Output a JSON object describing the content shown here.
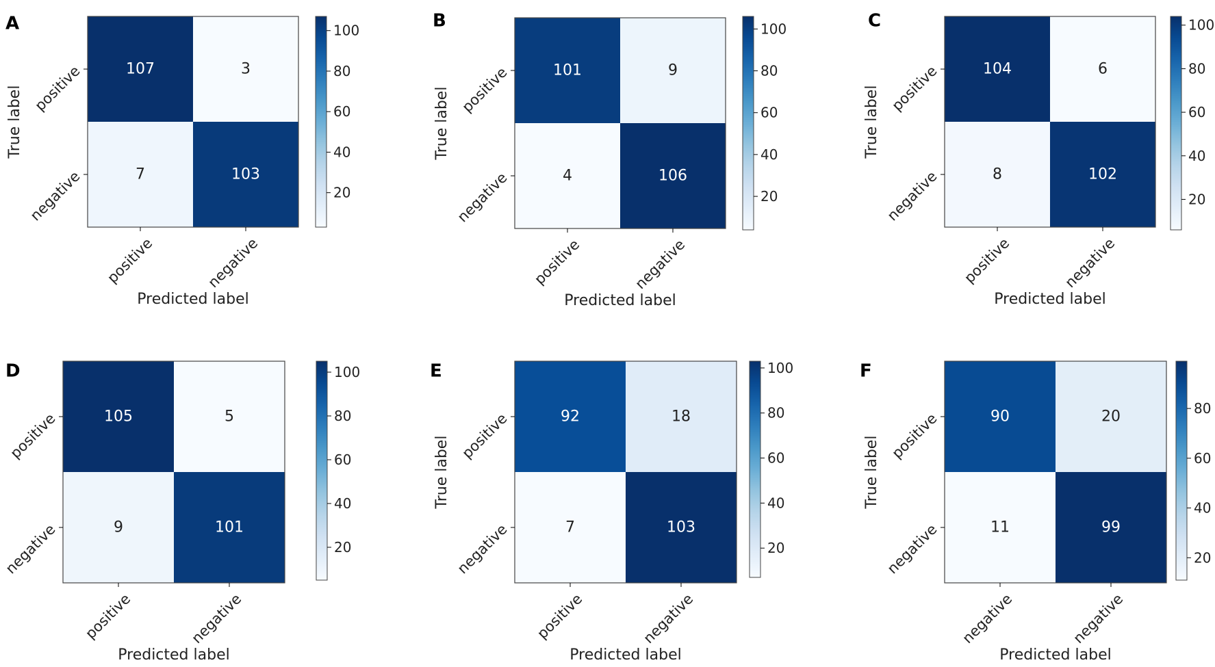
{
  "chart_data": [
    {
      "panel": "A",
      "type": "heatmap",
      "xlabel": "Predicted label",
      "ylabel": "True label",
      "x_categories": [
        "positive",
        "negative"
      ],
      "y_categories": [
        "positive",
        "negative"
      ],
      "matrix": [
        [
          107,
          3
        ],
        [
          7,
          103
        ]
      ],
      "colormap": "Blues",
      "vmin": 3,
      "vmax": 107,
      "colorbar_ticks": [
        20,
        40,
        60,
        80,
        100
      ]
    },
    {
      "panel": "B",
      "type": "heatmap",
      "xlabel": "Predicted label",
      "ylabel": "True label",
      "x_categories": [
        "positive",
        "negative"
      ],
      "y_categories": [
        "positive",
        "negative"
      ],
      "matrix": [
        [
          101,
          9
        ],
        [
          4,
          106
        ]
      ],
      "colormap": "Blues",
      "vmin": 4,
      "vmax": 106,
      "colorbar_ticks": [
        20,
        40,
        60,
        80,
        100
      ]
    },
    {
      "panel": "C",
      "type": "heatmap",
      "xlabel": "Predicted label",
      "ylabel": "True label",
      "x_categories": [
        "positive",
        "negative"
      ],
      "y_categories": [
        "positive",
        "negative"
      ],
      "matrix": [
        [
          104,
          6
        ],
        [
          8,
          102
        ]
      ],
      "colormap": "Blues",
      "vmin": 6,
      "vmax": 104,
      "colorbar_ticks": [
        20,
        40,
        60,
        80,
        100
      ]
    },
    {
      "panel": "D",
      "type": "heatmap",
      "xlabel": "Predicted label",
      "ylabel": "True label",
      "x_categories": [
        "positive",
        "negative"
      ],
      "y_categories": [
        "positive",
        "negative"
      ],
      "matrix": [
        [
          105,
          5
        ],
        [
          9,
          101
        ]
      ],
      "colormap": "Blues",
      "vmin": 5,
      "vmax": 105,
      "colorbar_ticks": [
        20,
        40,
        60,
        80,
        100
      ]
    },
    {
      "panel": "E",
      "type": "heatmap",
      "xlabel": "Predicted label",
      "ylabel": "True label",
      "x_categories": [
        "positive",
        "negative"
      ],
      "y_categories": [
        "positive",
        "negative"
      ],
      "matrix": [
        [
          92,
          18
        ],
        [
          7,
          103
        ]
      ],
      "colormap": "Blues",
      "vmin": 7,
      "vmax": 103,
      "colorbar_ticks": [
        20,
        40,
        60,
        80,
        100
      ]
    },
    {
      "panel": "F",
      "type": "heatmap",
      "xlabel": "Predicted label",
      "ylabel": "True label",
      "x_categories": [
        "negative",
        "negative"
      ],
      "y_categories": [
        "positive",
        "negative"
      ],
      "matrix": [
        [
          90,
          20
        ],
        [
          11,
          99
        ]
      ],
      "colormap": "Blues",
      "vmin": 11,
      "vmax": 99,
      "colorbar_ticks": [
        20,
        40,
        60,
        80
      ]
    }
  ]
}
